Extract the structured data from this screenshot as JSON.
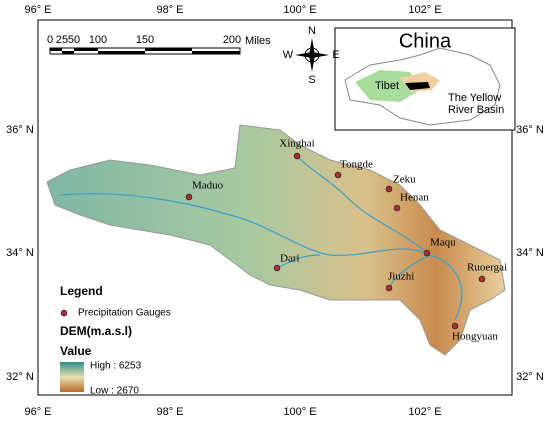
{
  "graticule": {
    "lon_labels_top": [
      "96° E",
      "98° E",
      "100° E",
      "102° E"
    ],
    "lon_labels_bottom": [
      "96° E",
      "98° E",
      "100° E",
      "102° E"
    ],
    "lat_labels_left": [
      "36° N",
      "34° N",
      "32° N"
    ],
    "lat_labels_right": [
      "36° N",
      "34° N",
      "32° N"
    ]
  },
  "scale_bar": {
    "labels": [
      "0",
      "25",
      "50",
      "100",
      "150",
      "200"
    ],
    "unit": "Miles"
  },
  "compass": {
    "north": "N",
    "south": "S",
    "east": "E",
    "west": "W"
  },
  "inset": {
    "title": "China",
    "region": "Tibet",
    "basin_label": [
      "The Yellow",
      "River Basin"
    ]
  },
  "stations": [
    "Xinghai",
    "Tongde",
    "Zeku",
    "Henan",
    "Maqu",
    "Ruoergai",
    "Jiuzhi",
    "Hongyuan",
    "Maduo",
    "Dari"
  ],
  "legend": {
    "title": "Legend",
    "gauges": "Precipitation Gauges",
    "dem_title": "DEM(m.a.s.l)",
    "value_title": "Value",
    "high": "High : 6253",
    "low": "Low : 2670"
  }
}
